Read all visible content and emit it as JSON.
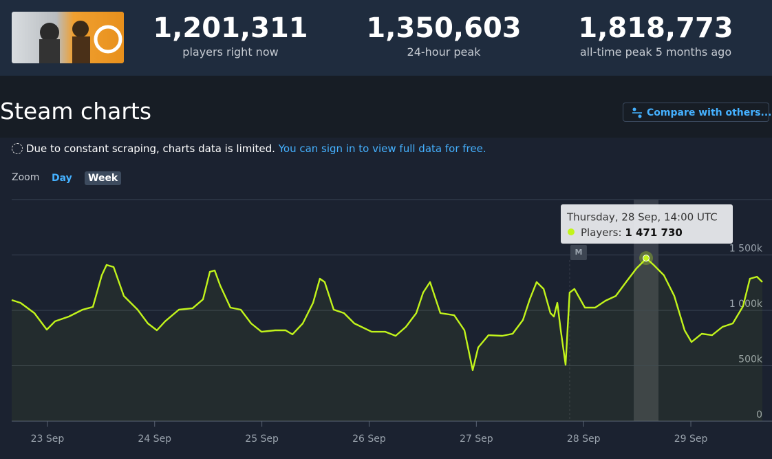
{
  "header": {
    "stats": [
      {
        "value": "1,201,311",
        "label": "players right now"
      },
      {
        "value": "1,350,603",
        "label": "24-hour peak"
      },
      {
        "value": "1,818,773",
        "label": "all-time peak 5 months ago"
      }
    ]
  },
  "section_title": "Steam charts",
  "compare_button": "Compare with others...",
  "notice": {
    "text": "Due to constant scraping, charts data is limited.",
    "link": "You can sign in to view full data for free."
  },
  "zoom": {
    "label": "Zoom",
    "options": [
      "Day",
      "Week"
    ]
  },
  "chart_data": {
    "type": "line",
    "xlim": [
      22.667,
      29.667
    ],
    "xticks": [
      {
        "value": 23,
        "label": "23 Sep"
      },
      {
        "value": 24,
        "label": "24 Sep"
      },
      {
        "value": 25,
        "label": "25 Sep"
      },
      {
        "value": 26,
        "label": "26 Sep"
      },
      {
        "value": 27,
        "label": "27 Sep"
      },
      {
        "value": 28,
        "label": "28 Sep"
      },
      {
        "value": 29,
        "label": "29 Sep"
      }
    ],
    "ylim": [
      0,
      2000000
    ],
    "yticks": [
      {
        "value": 0,
        "label": "0"
      },
      {
        "value": 500000,
        "label": "500k"
      },
      {
        "value": 1000000,
        "label": "1 000k"
      },
      {
        "value": 1500000,
        "label": "1 500k"
      },
      {
        "value": 2000000,
        "label": ""
      }
    ],
    "grid": true,
    "x": [
      22.667,
      22.75,
      22.879,
      22.994,
      23.071,
      23.2,
      23.328,
      23.424,
      23.507,
      23.552,
      23.617,
      23.713,
      23.841,
      23.937,
      24.021,
      24.098,
      24.226,
      24.354,
      24.451,
      24.515,
      24.56,
      24.611,
      24.707,
      24.803,
      24.9,
      24.996,
      25.124,
      25.221,
      25.285,
      25.381,
      25.477,
      25.541,
      25.586,
      25.67,
      25.766,
      25.862,
      26.023,
      26.151,
      26.247,
      26.343,
      26.44,
      26.504,
      26.568,
      26.664,
      26.793,
      26.889,
      26.966,
      27.017,
      27.113,
      27.242,
      27.338,
      27.434,
      27.498,
      27.562,
      27.627,
      27.691,
      27.723,
      27.755,
      27.787,
      27.832,
      27.87,
      27.915,
      28.012,
      28.108,
      28.204,
      28.3,
      28.396,
      28.493,
      28.557,
      28.583,
      28.653,
      28.749,
      28.846,
      28.942,
      29.006,
      29.102,
      29.198,
      29.295,
      29.391,
      29.487,
      29.551,
      29.616,
      29.667
    ],
    "series": [
      {
        "color": "#c2f41b",
        "values": [
          1093000,
          1068000,
          975000,
          826000,
          901000,
          944000,
          1006000,
          1031000,
          1317000,
          1410000,
          1391000,
          1130000,
          1006000,
          882000,
          820000,
          901000,
          1006000,
          1019000,
          1099000,
          1348000,
          1360000,
          1224000,
          1025000,
          1006000,
          882000,
          807000,
          820000,
          820000,
          783000,
          882000,
          1068000,
          1286000,
          1255000,
          1006000,
          975000,
          882000,
          807000,
          807000,
          770000,
          851000,
          975000,
          1161000,
          1255000,
          975000,
          956000,
          820000,
          460000,
          665000,
          776000,
          770000,
          789000,
          913000,
          1099000,
          1255000,
          1193000,
          975000,
          944000,
          1068000,
          820000,
          509000,
          1161000,
          1193000,
          1025000,
          1025000,
          1087000,
          1130000,
          1255000,
          1379000,
          1441000,
          1471730,
          1410000,
          1317000,
          1130000,
          820000,
          714000,
          789000,
          776000,
          851000,
          882000,
          1037000,
          1286000,
          1304000,
          1255000
        ]
      }
    ],
    "annotations": [
      {
        "x": 27.87,
        "text": "M"
      }
    ],
    "tooltip": {
      "x": 28.583,
      "value": 1471730,
      "title": "Thursday, 28 Sep, 14:00 UTC",
      "label": "Players:",
      "value_label": "1 471 730"
    }
  }
}
